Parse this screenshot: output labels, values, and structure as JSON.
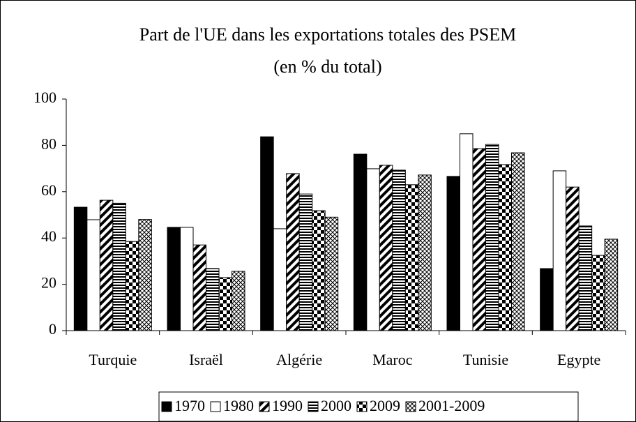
{
  "chart_data": {
    "type": "bar",
    "title": "Part de l'UE dans les exportations totales des PSEM",
    "subtitle": "(en % du total)",
    "categories": [
      "Turquie",
      "Israël",
      "Algérie",
      "Maroc",
      "Tunisie",
      "Egypte"
    ],
    "series": [
      {
        "name": "1970",
        "color": "#000000",
        "pattern": "solid",
        "values": [
          53.3,
          44.6,
          83.7,
          76.2,
          66.6,
          26.8
        ]
      },
      {
        "name": "1980",
        "color": "#000000",
        "pattern": "empty",
        "values": [
          47.9,
          44.6,
          44,
          69.9,
          85,
          69
        ]
      },
      {
        "name": "1990",
        "color": "#000000",
        "pattern": "diagonal",
        "values": [
          56.3,
          37,
          67.8,
          71.4,
          78.6,
          62
        ]
      },
      {
        "name": "2000",
        "color": "#000000",
        "pattern": "horizontal",
        "values": [
          55,
          26.8,
          59,
          69.3,
          80.4,
          45.2
        ]
      },
      {
        "name": "2009",
        "color": "#000000",
        "pattern": "checker",
        "values": [
          38.5,
          22.9,
          51.8,
          63,
          71.7,
          32.5
        ]
      },
      {
        "name": "2001-2009",
        "color": "#000000",
        "pattern": "crosshatch",
        "values": [
          48,
          25.6,
          49,
          67.2,
          76.8,
          39.5
        ]
      }
    ],
    "ylim": [
      0,
      100
    ],
    "yticks": [
      0,
      20,
      40,
      60,
      80,
      100
    ],
    "grid": false,
    "legend": "bottom"
  }
}
